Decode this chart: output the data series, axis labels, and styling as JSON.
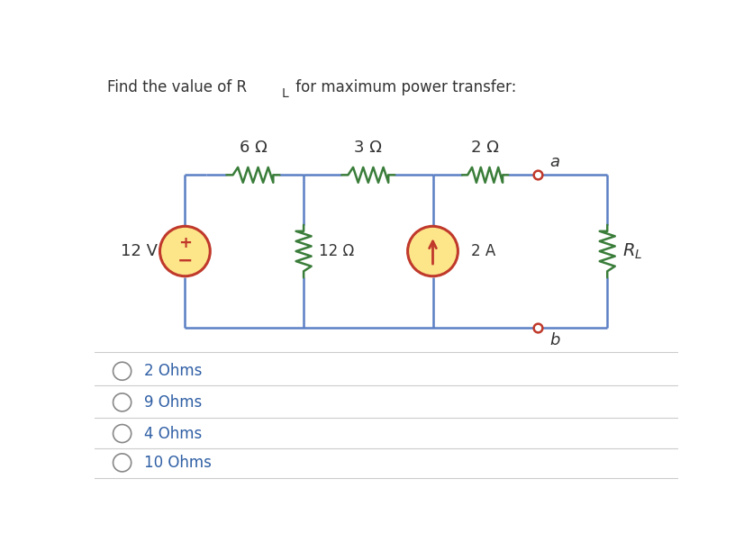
{
  "title_plain": "Find the value of R",
  "title_sub": "L",
  "title_rest": " for maximum power transfer:",
  "background_color": "#ffffff",
  "wire_color": "#5b7fc4",
  "resistor_color": "#3a7d3a",
  "source_fill": "#fde68a",
  "source_border": "#c0392b",
  "terminal_color": "#c0392b",
  "label_color": "#333333",
  "choices_color": "#2f5fa5",
  "choices": [
    "2 Ohms",
    "9 Ohms",
    "4 Ohms",
    "10 Ohms"
  ],
  "res_labels": [
    "6 Ω",
    "3 Ω",
    "2 Ω"
  ],
  "vs_label": "12 V",
  "r12_label": "12 Ω",
  "cs_label": "2 A",
  "rl_label": "R",
  "rl_sub": "L",
  "node_a": "a",
  "node_b": "b"
}
